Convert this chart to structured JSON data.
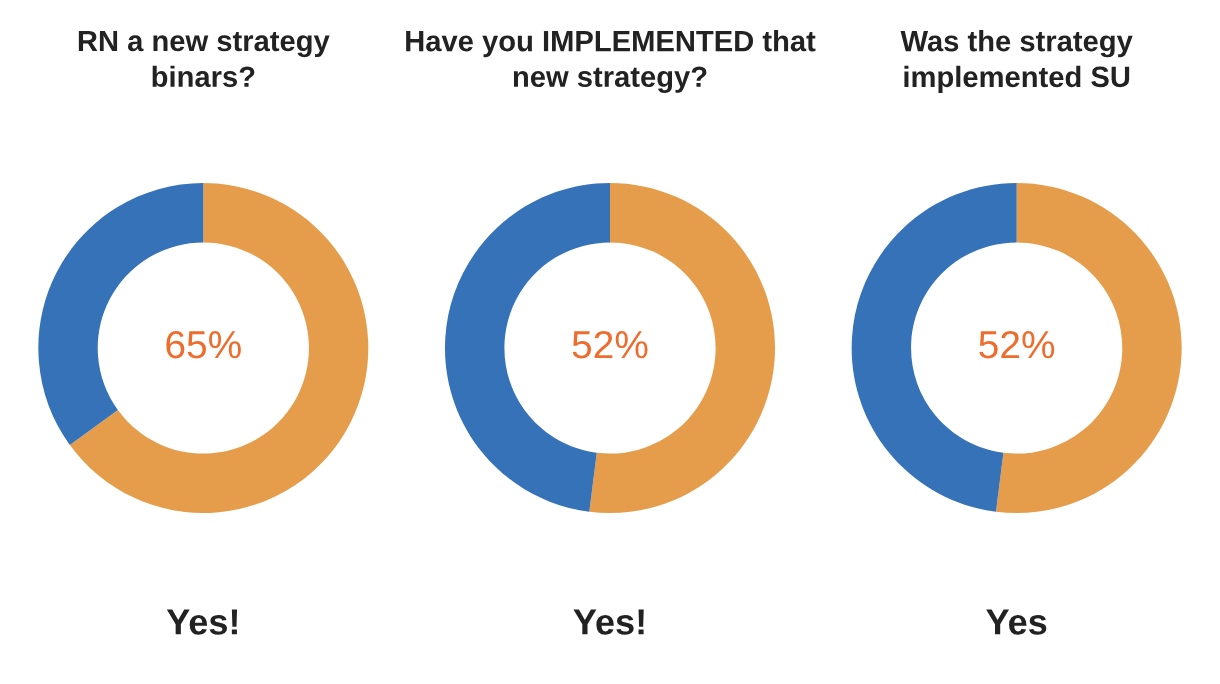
{
  "chart_data": [
    {
      "type": "donut",
      "title": "RN a new strategy\nbinars?",
      "categories": [
        null,
        null
      ],
      "values": [
        65,
        35
      ],
      "colors": [
        "#e69d4b",
        "#3572b8"
      ],
      "value_labels": [
        "65%",
        null
      ],
      "annotations": [
        "Yes!"
      ]
    },
    {
      "type": "donut",
      "title": "Have you IMPLEMENTED that\nnew strategy?",
      "categories": [
        null,
        null
      ],
      "values": [
        52,
        48
      ],
      "colors": [
        "#e69d4b",
        "#3572b8"
      ],
      "value_labels": [
        "52%",
        null
      ],
      "annotations": [
        "Yes!"
      ]
    },
    {
      "type": "donut",
      "title": "Was the strategy\nimplemented SU",
      "categories": [
        null,
        null
      ],
      "values": [
        52,
        48
      ],
      "colors": [
        "#e69d4b",
        "#3572b8"
      ],
      "value_labels": [
        "52%",
        null
      ],
      "annotations": [
        "Yes"
      ]
    }
  ]
}
